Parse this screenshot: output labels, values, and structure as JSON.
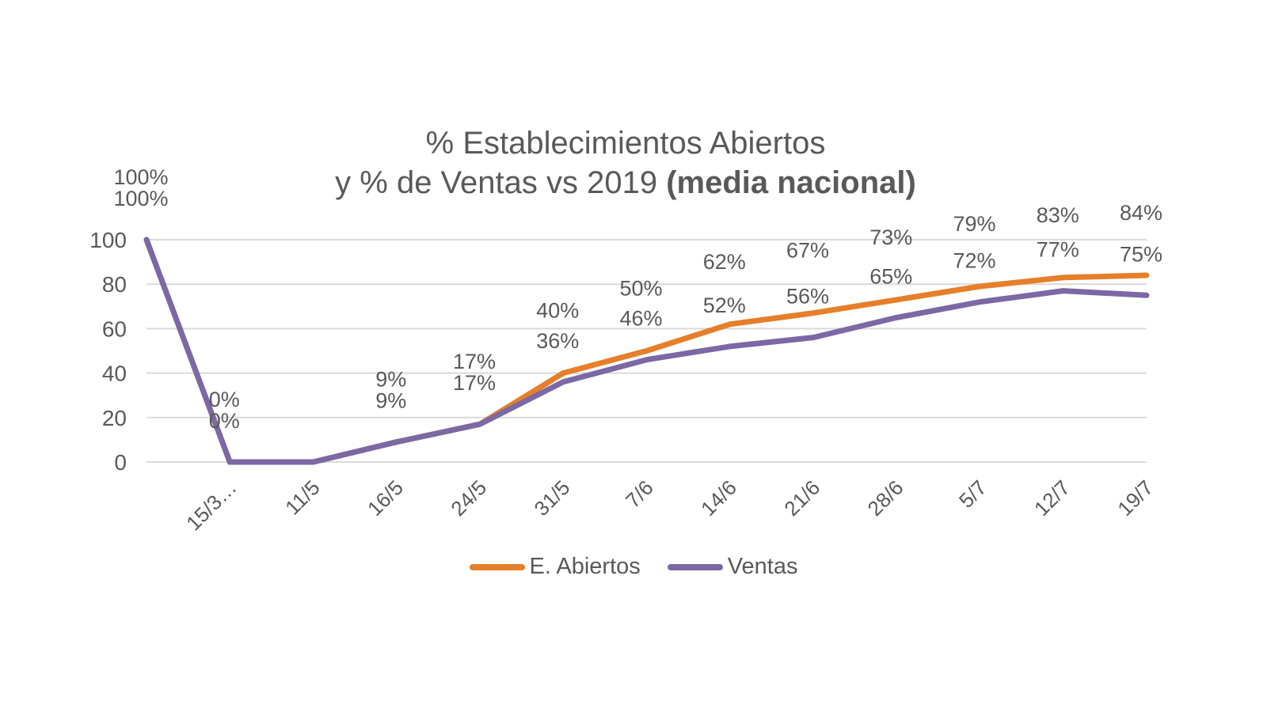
{
  "chart_data": {
    "type": "line",
    "title": {
      "line1": "% Establecimientos Abiertos",
      "line2_regular": "y % de Ventas vs 2019 ",
      "line2_bold": "(media nacional)"
    },
    "categories": [
      "",
      "15/3…",
      "11/5",
      "16/5",
      "24/5",
      "31/5",
      "7/6",
      "14/6",
      "21/6",
      "28/6",
      "5/7",
      "12/7",
      "19/7"
    ],
    "series": [
      {
        "name": "E. Abiertos",
        "color": "#E67E2A",
        "values": [
          100,
          0,
          0,
          9,
          17,
          40,
          50,
          62,
          67,
          73,
          79,
          83,
          84
        ],
        "labels": [
          "100%",
          "0%",
          "",
          "9%",
          "17%",
          "40%",
          "50%",
          "62%",
          "67%",
          "73%",
          "79%",
          "83%",
          "84%"
        ]
      },
      {
        "name": "Ventas",
        "color": "#7B68A4",
        "values": [
          100,
          0,
          0,
          9,
          17,
          36,
          46,
          52,
          56,
          65,
          72,
          77,
          75
        ],
        "labels": [
          "100%",
          "0%",
          "",
          "9%",
          "17%",
          "36%",
          "46%",
          "52%",
          "56%",
          "65%",
          "72%",
          "77%",
          "75%"
        ]
      }
    ],
    "y_axis": {
      "min": 0,
      "max": 100,
      "ticks": [
        0,
        20,
        40,
        60,
        80,
        100
      ]
    },
    "x_axis_label_rotation": -45,
    "grid": true,
    "legend_position": "bottom",
    "colors": {
      "text": "#595959",
      "gridline": "#D9D9D9",
      "background": "#FFFFFF"
    }
  }
}
